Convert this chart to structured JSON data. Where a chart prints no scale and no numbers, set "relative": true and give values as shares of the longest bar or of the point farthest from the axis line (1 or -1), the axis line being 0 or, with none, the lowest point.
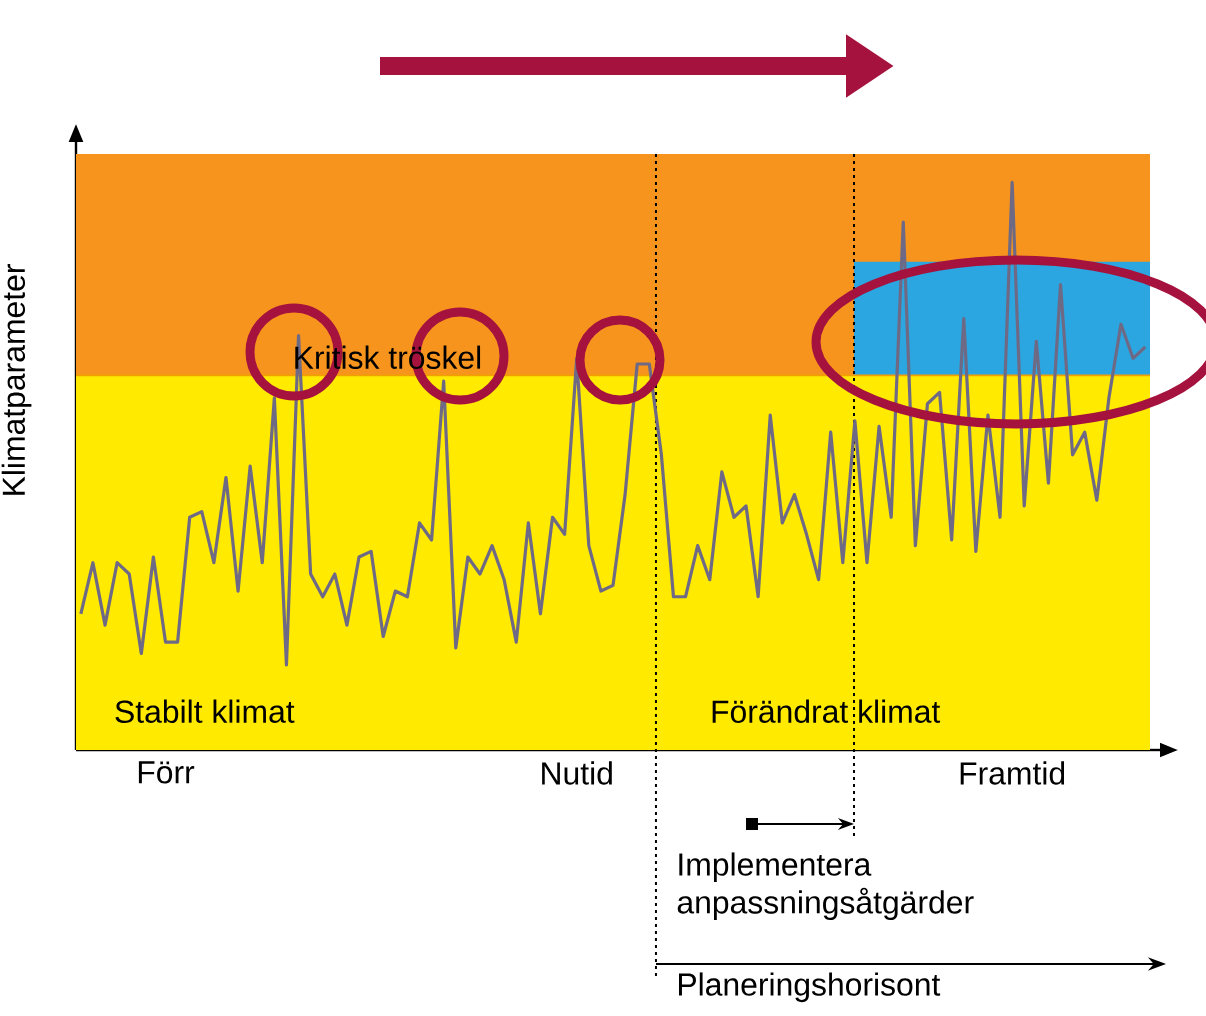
{
  "chart_data": {
    "type": "line",
    "relative": true,
    "ylabel": "Klimatparameter",
    "color": "#6e6a86",
    "categories": [
      null,
      null,
      null,
      null,
      null,
      null,
      null,
      "Förr",
      null,
      null,
      null,
      null,
      null,
      null,
      null,
      null,
      null,
      null,
      null,
      null,
      null,
      null,
      null,
      null,
      null,
      null,
      null,
      null,
      null,
      null,
      null,
      null,
      null,
      null,
      null,
      null,
      null,
      null,
      null,
      null,
      null,
      "Nutid",
      null,
      null,
      null,
      null,
      null,
      null,
      null,
      null,
      null,
      null,
      null,
      null,
      null,
      null,
      null,
      null,
      null,
      null,
      null,
      null,
      null,
      null,
      null,
      null,
      null,
      null,
      null,
      null,
      null,
      null,
      null,
      null,
      null,
      null,
      null,
      "Framtid",
      null,
      null,
      null,
      null,
      null,
      null,
      null,
      null,
      null,
      null,
      null
    ],
    "values": [
      0.24,
      0.33,
      0.22,
      0.33,
      0.31,
      0.17,
      0.34,
      0.19,
      0.19,
      0.41,
      0.42,
      0.33,
      0.48,
      0.28,
      0.5,
      0.33,
      0.62,
      0.15,
      0.73,
      0.31,
      0.27,
      0.31,
      0.22,
      0.34,
      0.35,
      0.2,
      0.28,
      0.27,
      0.4,
      0.37,
      0.65,
      0.18,
      0.34,
      0.31,
      0.36,
      0.3,
      0.19,
      0.4,
      0.24,
      0.41,
      0.38,
      0.69,
      0.36,
      0.28,
      0.29,
      0.45,
      0.68,
      0.68,
      0.52,
      0.27,
      0.27,
      0.36,
      0.3,
      0.49,
      0.41,
      0.43,
      0.27,
      0.59,
      0.4,
      0.45,
      0.38,
      0.3,
      0.56,
      0.33,
      0.58,
      0.33,
      0.57,
      0.41,
      0.93,
      0.36,
      0.61,
      0.63,
      0.37,
      0.76,
      0.35,
      0.59,
      0.41,
      1.0,
      0.43,
      0.72,
      0.47,
      0.82,
      0.52,
      0.56,
      0.44,
      0.62,
      0.75,
      0.69,
      0.71
    ],
    "bands": [
      {
        "axis": "y",
        "from": 0,
        "to": 0.66,
        "color": "#ffea00"
      },
      {
        "axis": "y",
        "from": 0.66,
        "to": 1.05,
        "color": "#f7941d"
      },
      {
        "axis": "y",
        "from": 0.66,
        "to": 0.86,
        "color": "#2ba6e0"
      }
    ],
    "ref_lines": [
      {
        "axis": "y",
        "value": 0.66,
        "label": "Kritisk tröskel",
        "color": "#f2a000"
      }
    ],
    "annotations": [
      "Stabilt klimat",
      "Förändrat klimat",
      "Implementera anpassningsåtgärder",
      "Planeringshorisont"
    ]
  }
}
